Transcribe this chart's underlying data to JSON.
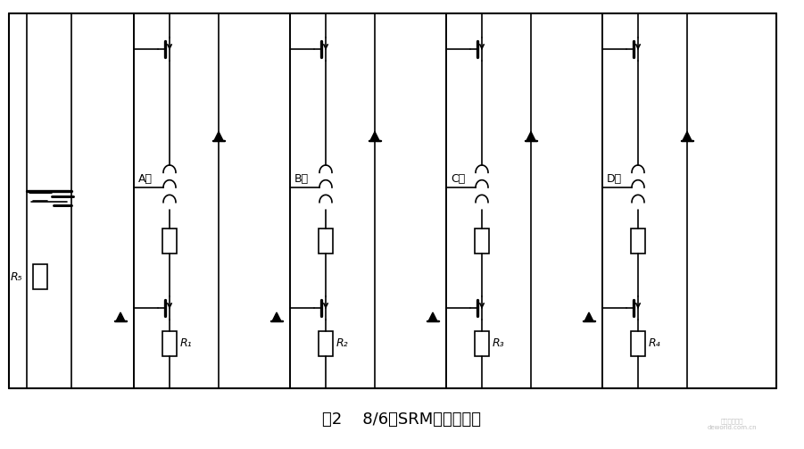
{
  "title": "图2    8/6极SRM电路结构图",
  "bg_color": "#ffffff",
  "line_color": "#000000",
  "phase_labels": [
    "A相",
    "B相",
    "C相",
    "D相"
  ],
  "resistor_labels": [
    "R₁",
    "R₂",
    "R₃",
    "R₄"
  ],
  "r5_label": "R₅",
  "fig_width": 9.01,
  "fig_height": 5.03,
  "dpi": 100
}
